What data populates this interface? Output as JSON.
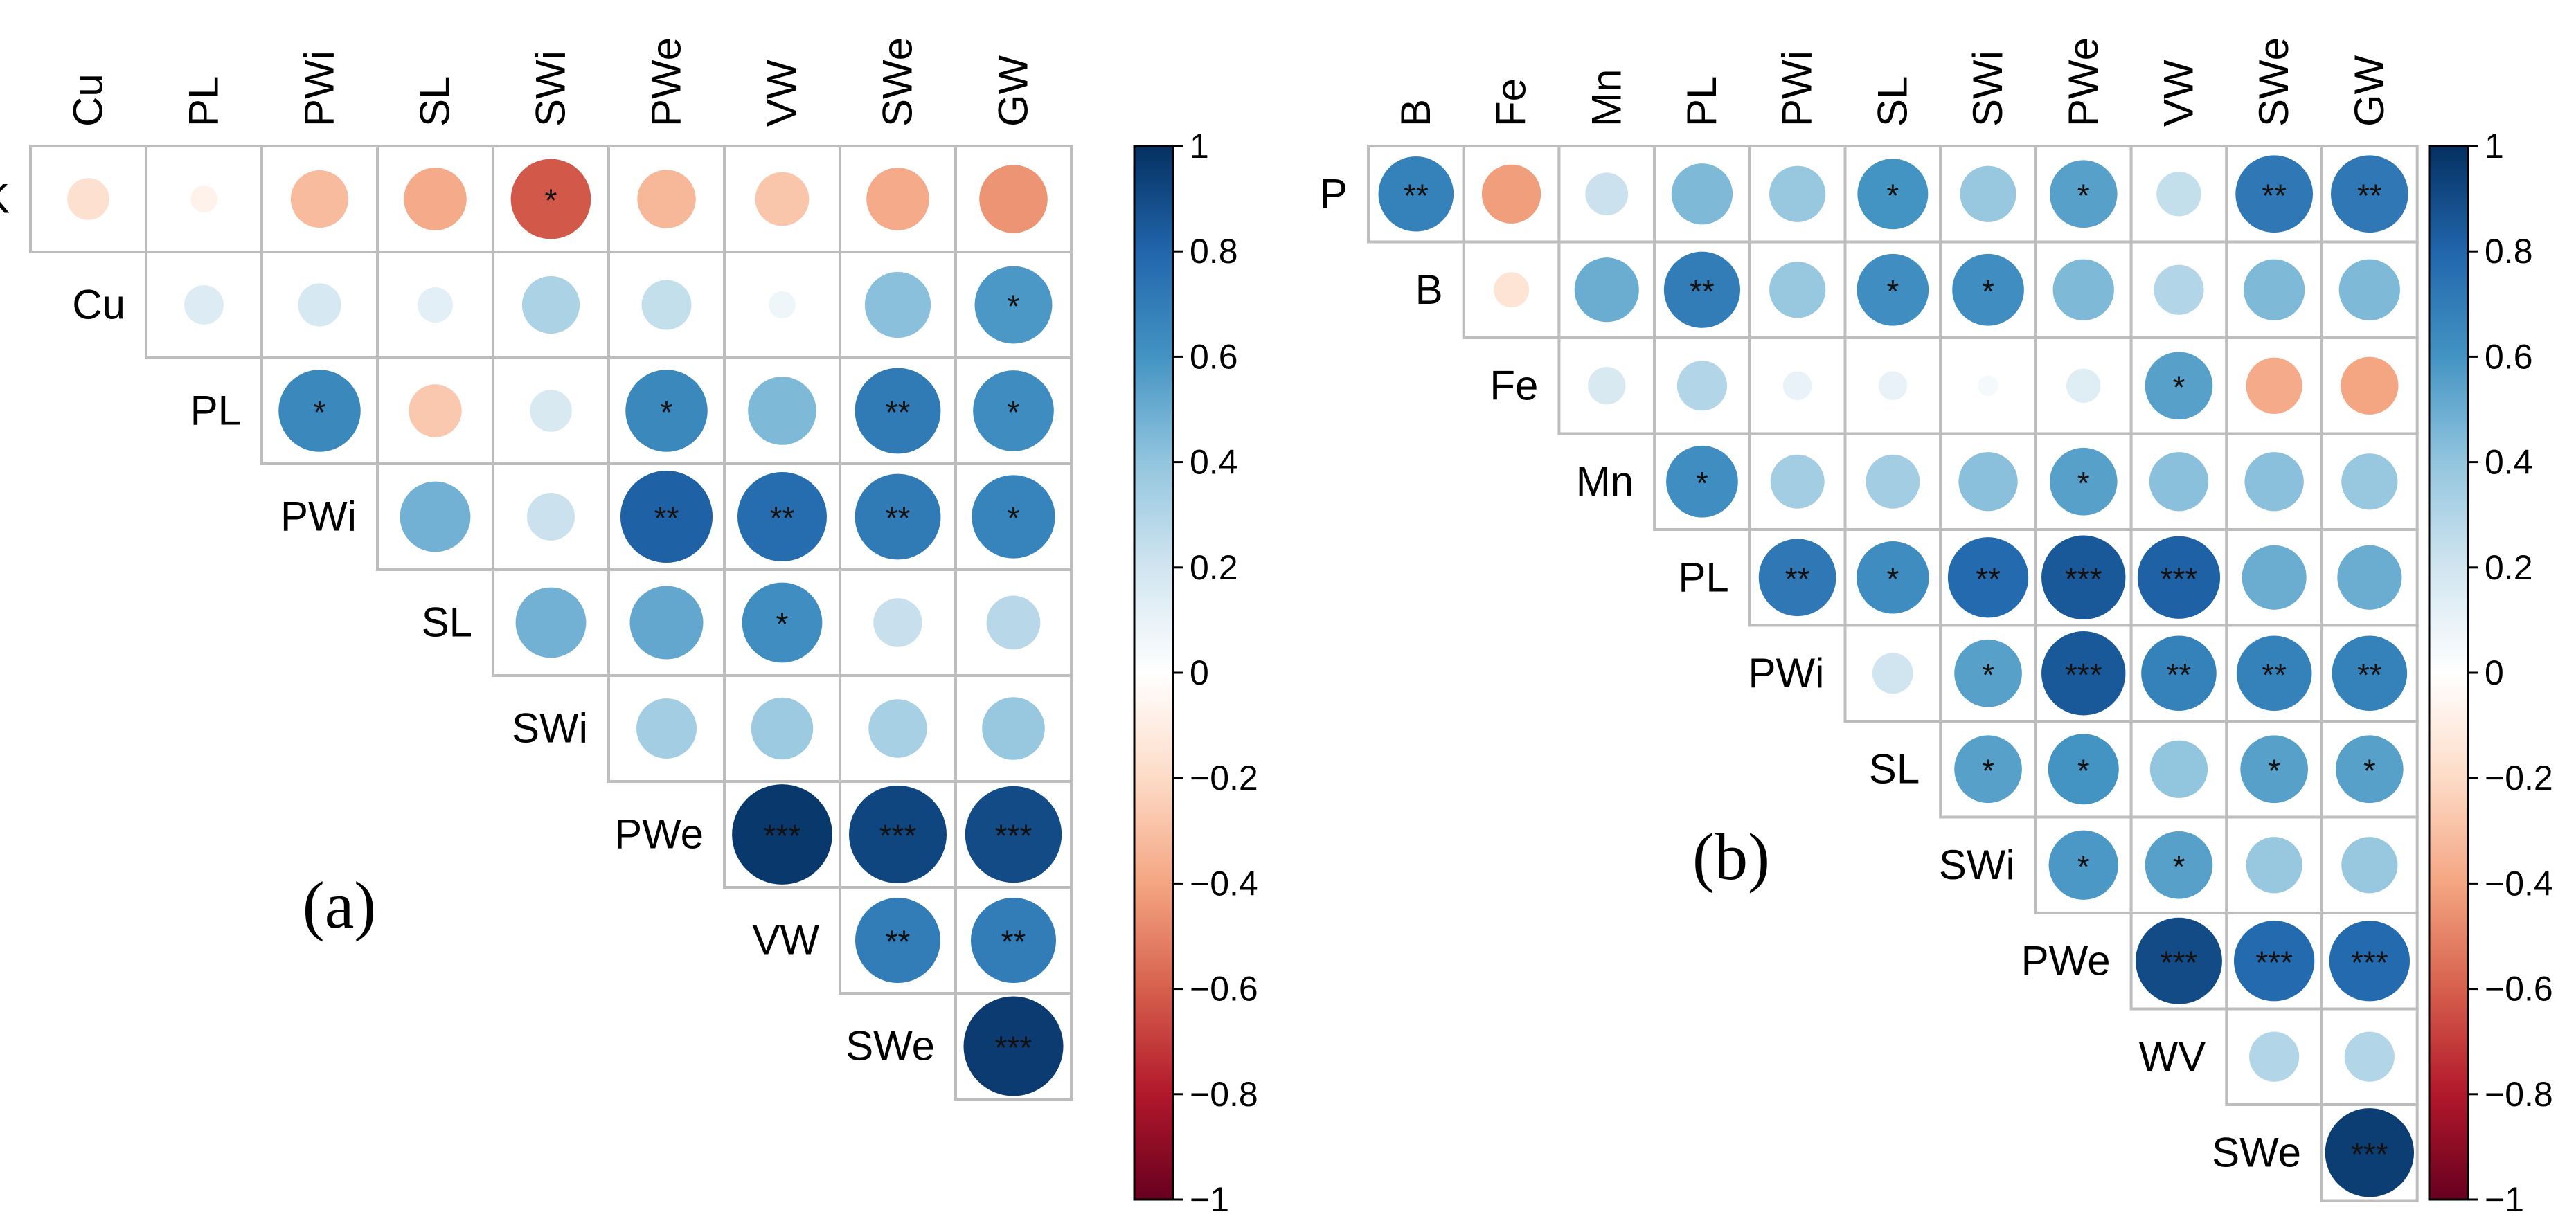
{
  "chart_data": [
    {
      "type": "heatmap",
      "subtype": "correlogram-upper-triangle",
      "panel_label": "(a)",
      "col_labels": [
        "Cu",
        "PL",
        "PWi",
        "SL",
        "SWi",
        "PWe",
        "VW",
        "SWe",
        "GW"
      ],
      "row_labels": [
        "K",
        "Cu",
        "PL",
        "PWi",
        "SL",
        "SWi",
        "PWe",
        "VW",
        "SWe"
      ],
      "colorbar": {
        "ticks": [
          "1",
          "0.8",
          "0.6",
          "0.4",
          "0.2",
          "0",
          "−0.2",
          "−0.4",
          "−0.6",
          "−0.8",
          "−1"
        ],
        "range": [
          -1,
          1
        ]
      },
      "rows": [
        {
          "name": "K",
          "values": [
            -0.17,
            -0.07,
            -0.32,
            -0.38,
            -0.62,
            -0.33,
            -0.28,
            -0.38,
            -0.45
          ],
          "sig": [
            "",
            "",
            "",
            "",
            "*",
            "",
            "",
            "",
            ""
          ]
        },
        {
          "name": "Cu",
          "values": [
            0.15,
            0.18,
            0.12,
            0.32,
            0.24,
            0.07,
            0.42,
            0.58
          ],
          "sig": [
            "",
            "",
            "",
            "",
            "",
            "",
            "",
            "*"
          ]
        },
        {
          "name": "PL",
          "values": [
            0.65,
            -0.27,
            0.17,
            0.65,
            0.45,
            0.71,
            0.63
          ],
          "sig": [
            "*",
            "",
            "",
            "*",
            "",
            "**",
            "*"
          ]
        },
        {
          "name": "PWi",
          "values": [
            0.48,
            0.22,
            0.82,
            0.77,
            0.71,
            0.67
          ],
          "sig": [
            "",
            "",
            "**",
            "**",
            "**",
            "*"
          ]
        },
        {
          "name": "SL",
          "values": [
            0.48,
            0.52,
            0.62,
            0.23,
            0.28
          ],
          "sig": [
            "",
            "",
            "*",
            "",
            ""
          ]
        },
        {
          "name": "SWi",
          "values": [
            0.35,
            0.37,
            0.33,
            0.38
          ],
          "sig": [
            "",
            "",
            "",
            ""
          ]
        },
        {
          "name": "PWe",
          "values": [
            0.97,
            0.92,
            0.9
          ],
          "sig": [
            "***",
            "***",
            "***"
          ]
        },
        {
          "name": "VW",
          "values": [
            0.7,
            0.7
          ],
          "sig": [
            "**",
            "**"
          ]
        },
        {
          "name": "SWe",
          "values": [
            0.96
          ],
          "sig": [
            "***"
          ]
        }
      ]
    },
    {
      "type": "heatmap",
      "subtype": "correlogram-upper-triangle",
      "panel_label": "(b)",
      "col_labels": [
        "B",
        "Fe",
        "Mn",
        "PL",
        "PWi",
        "SL",
        "SWi",
        "PWe",
        "VW",
        "SWe",
        "GW"
      ],
      "row_labels": [
        "P",
        "B",
        "Fe",
        "Mn",
        "PL",
        "PWi",
        "SL",
        "SWi",
        "PWe",
        "WV",
        "SWe"
      ],
      "colorbar": {
        "ticks": [
          "1",
          "0.8",
          "0.6",
          "0.4",
          "0.2",
          "0",
          "−0.2",
          "−0.4",
          "−0.6",
          "−0.8",
          "−1"
        ],
        "range": [
          -1,
          1
        ]
      },
      "rows": [
        {
          "name": "P",
          "values": [
            0.68,
            -0.42,
            0.22,
            0.45,
            0.38,
            0.6,
            0.38,
            0.55,
            0.24,
            0.72,
            0.72
          ],
          "sig": [
            "**",
            "",
            "",
            "",
            "",
            "*",
            "",
            "*",
            "",
            "**",
            "**"
          ]
        },
        {
          "name": "B",
          "values": [
            -0.15,
            0.5,
            0.7,
            0.38,
            0.62,
            0.62,
            0.45,
            0.3,
            0.45,
            0.45
          ],
          "sig": [
            "",
            "",
            "**",
            "",
            "*",
            "*",
            "",
            "",
            "",
            ""
          ]
        },
        {
          "name": "Fe",
          "values": [
            0.17,
            0.3,
            0.1,
            0.1,
            0.05,
            0.14,
            0.55,
            -0.38,
            -0.4
          ],
          "sig": [
            "",
            "",
            "",
            "",
            "",
            "",
            "*",
            "",
            ""
          ]
        },
        {
          "name": "Mn",
          "values": [
            0.62,
            0.35,
            0.35,
            0.42,
            0.55,
            0.42,
            0.42,
            0.38
          ],
          "sig": [
            "*",
            "",
            "",
            "",
            "*",
            "",
            "",
            ""
          ]
        },
        {
          "name": "PL",
          "values": [
            0.72,
            0.63,
            0.78,
            0.85,
            0.82,
            0.5,
            0.5
          ],
          "sig": [
            "**",
            "*",
            "**",
            "***",
            "***",
            "",
            ""
          ]
        },
        {
          "name": "PWi",
          "values": [
            0.2,
            0.55,
            0.85,
            0.68,
            0.68,
            0.68
          ],
          "sig": [
            "",
            "*",
            "***",
            "**",
            "**",
            "**"
          ]
        },
        {
          "name": "SL",
          "values": [
            0.55,
            0.6,
            0.4,
            0.55,
            0.55
          ],
          "sig": [
            "*",
            "*",
            "",
            "*",
            "*"
          ]
        },
        {
          "name": "SWi",
          "values": [
            0.58,
            0.55,
            0.38,
            0.38
          ],
          "sig": [
            "*",
            "*",
            "",
            ""
          ]
        },
        {
          "name": "PWe",
          "values": [
            0.9,
            0.78,
            0.78
          ],
          "sig": [
            "***",
            "***",
            "***"
          ]
        },
        {
          "name": "WV",
          "values": [
            0.3,
            0.3
          ],
          "sig": [
            "",
            ""
          ]
        },
        {
          "name": "SWe",
          "values": [
            0.95
          ],
          "sig": [
            "***"
          ]
        }
      ]
    }
  ]
}
